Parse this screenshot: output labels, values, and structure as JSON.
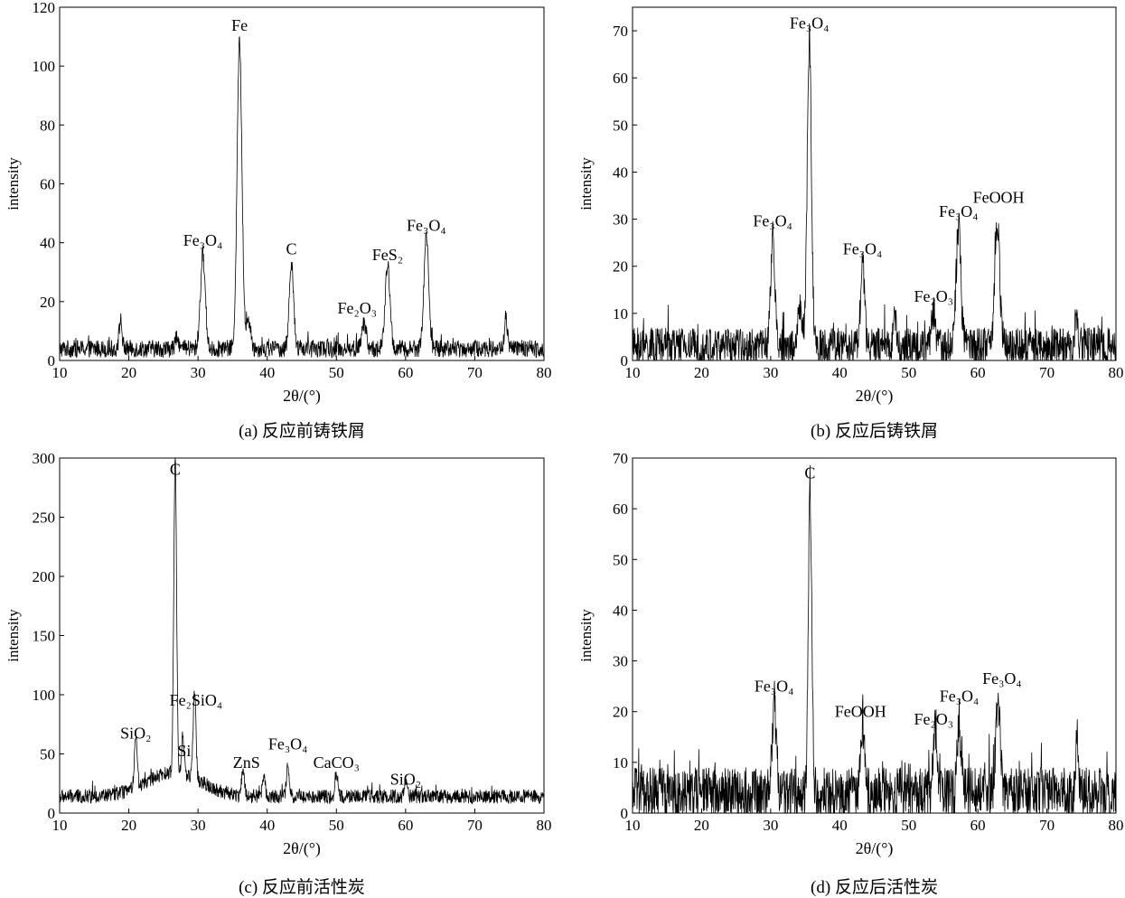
{
  "chart_data": [
    {
      "type": "line",
      "caption": "(a) 反应前铸铁屑",
      "xlabel": "2θ/(°)",
      "ylabel": "intensity",
      "xlim": [
        10,
        80
      ],
      "ylim": [
        0,
        120
      ],
      "xticks": [
        10,
        20,
        30,
        40,
        50,
        60,
        70,
        80
      ],
      "yticks": [
        0,
        20,
        40,
        60,
        80,
        100,
        120
      ],
      "baseline": 4,
      "noise": 3,
      "series_color": "#000000",
      "peaks": [
        {
          "x": 18.8,
          "y": 14,
          "w": 0.2
        },
        {
          "x": 27.0,
          "y": 9,
          "w": 0.2
        },
        {
          "x": 30.7,
          "y": 36,
          "w": 0.35
        },
        {
          "x": 36.0,
          "y": 108,
          "w": 0.35
        },
        {
          "x": 37.3,
          "y": 14,
          "w": 0.3
        },
        {
          "x": 43.5,
          "y": 34,
          "w": 0.3
        },
        {
          "x": 54.0,
          "y": 13,
          "w": 0.3
        },
        {
          "x": 57.4,
          "y": 32,
          "w": 0.35
        },
        {
          "x": 63.0,
          "y": 42,
          "w": 0.35
        },
        {
          "x": 74.5,
          "y": 15,
          "w": 0.2
        }
      ],
      "annotations": [
        {
          "label": "Fe",
          "x": 36.0,
          "y": 112
        },
        {
          "label": "Fe₃O₄",
          "x": 30.7,
          "y": 39
        },
        {
          "label": "C",
          "x": 43.5,
          "y": 36
        },
        {
          "label": "FeS₂",
          "x": 57.4,
          "y": 34
        },
        {
          "label": "Fe₃O₄",
          "x": 63.0,
          "y": 44
        },
        {
          "label": "Fe₂O₃",
          "x": 53.0,
          "y": 16
        }
      ]
    },
    {
      "type": "line",
      "caption": "(b) 反应后铸铁屑",
      "xlabel": "2θ/(°)",
      "ylabel": "intensity",
      "xlim": [
        10,
        80
      ],
      "ylim": [
        0,
        75
      ],
      "xticks": [
        10,
        20,
        30,
        40,
        50,
        60,
        70,
        80
      ],
      "yticks": [
        0,
        10,
        20,
        30,
        40,
        50,
        60,
        70
      ],
      "baseline": 3,
      "noise": 4,
      "series_color": "#000000",
      "peaks": [
        {
          "x": 30.3,
          "y": 26,
          "w": 0.3
        },
        {
          "x": 34.2,
          "y": 11,
          "w": 0.3
        },
        {
          "x": 35.6,
          "y": 68,
          "w": 0.3
        },
        {
          "x": 43.3,
          "y": 20,
          "w": 0.3
        },
        {
          "x": 48.0,
          "y": 9,
          "w": 0.2
        },
        {
          "x": 53.6,
          "y": 10,
          "w": 0.3
        },
        {
          "x": 57.2,
          "y": 28,
          "w": 0.35
        },
        {
          "x": 62.8,
          "y": 30,
          "w": 0.35
        },
        {
          "x": 74.3,
          "y": 10,
          "w": 0.2
        }
      ],
      "annotations": [
        {
          "label": "Fe₃O₄",
          "x": 35.6,
          "y": 70.5
        },
        {
          "label": "Fe₃O₄",
          "x": 30.3,
          "y": 28.5
        },
        {
          "label": "Fe₃O₄",
          "x": 43.3,
          "y": 22.5
        },
        {
          "label": "Fe₂O₃",
          "x": 53.6,
          "y": 12.5
        },
        {
          "label": "Fe₃O₄",
          "x": 57.2,
          "y": 30.5
        },
        {
          "label": "FeOOH",
          "x": 63.0,
          "y": 33.5
        }
      ]
    },
    {
      "type": "line",
      "caption": "(c) 反应前活性炭",
      "xlabel": "2θ/(°)",
      "ylabel": "intensity",
      "xlim": [
        10,
        80
      ],
      "ylim": [
        0,
        300
      ],
      "xticks": [
        10,
        20,
        30,
        40,
        50,
        60,
        70,
        80
      ],
      "yticks": [
        0,
        50,
        100,
        150,
        200,
        250,
        300
      ],
      "baseline": 14,
      "noise": 6,
      "hump": {
        "center": 26.5,
        "height": 20,
        "width": 4
      },
      "series_color": "#000000",
      "peaks": [
        {
          "x": 21.0,
          "y": 60,
          "w": 0.2
        },
        {
          "x": 26.7,
          "y": 283,
          "w": 0.2
        },
        {
          "x": 27.8,
          "y": 45,
          "w": 0.2
        },
        {
          "x": 29.5,
          "y": 88,
          "w": 0.2
        },
        {
          "x": 36.5,
          "y": 35,
          "w": 0.2
        },
        {
          "x": 39.5,
          "y": 33,
          "w": 0.2
        },
        {
          "x": 43.0,
          "y": 40,
          "w": 0.2
        },
        {
          "x": 50.0,
          "y": 35,
          "w": 0.2
        },
        {
          "x": 60.0,
          "y": 28,
          "w": 0.2
        }
      ],
      "annotations": [
        {
          "label": "C",
          "x": 26.7,
          "y": 286
        },
        {
          "label": "SiO₂",
          "x": 21.0,
          "y": 63
        },
        {
          "label": "Fe₂SiO₄",
          "x": 29.7,
          "y": 91
        },
        {
          "label": "Si",
          "x": 28.0,
          "y": 48
        },
        {
          "label": "ZnS",
          "x": 37.0,
          "y": 38
        },
        {
          "label": "Fe₃O₄",
          "x": 43.0,
          "y": 54
        },
        {
          "label": "CaCO₃",
          "x": 50.0,
          "y": 38
        },
        {
          "label": "SiO₂",
          "x": 60.0,
          "y": 24
        }
      ]
    },
    {
      "type": "line",
      "caption": "(d) 反应后活性炭",
      "xlabel": "2θ/(°)",
      "ylabel": "intensity",
      "xlim": [
        10,
        80
      ],
      "ylim": [
        0,
        70
      ],
      "xticks": [
        10,
        20,
        30,
        40,
        50,
        60,
        70,
        80
      ],
      "yticks": [
        0,
        10,
        20,
        30,
        40,
        50,
        60,
        70
      ],
      "baseline": 4,
      "noise": 5,
      "series_color": "#000000",
      "peaks": [
        {
          "x": 30.5,
          "y": 22,
          "w": 0.3
        },
        {
          "x": 35.7,
          "y": 64,
          "w": 0.25
        },
        {
          "x": 43.3,
          "y": 17,
          "w": 0.25
        },
        {
          "x": 53.8,
          "y": 16,
          "w": 0.25
        },
        {
          "x": 57.3,
          "y": 18,
          "w": 0.25
        },
        {
          "x": 62.9,
          "y": 24,
          "w": 0.3
        },
        {
          "x": 74.3,
          "y": 12,
          "w": 0.2
        }
      ],
      "annotations": [
        {
          "label": "C",
          "x": 35.7,
          "y": 66
        },
        {
          "label": "Fe₃O₄",
          "x": 30.5,
          "y": 24
        },
        {
          "label": "FeOOH",
          "x": 43.0,
          "y": 19
        },
        {
          "label": "Fe₂O₃",
          "x": 53.6,
          "y": 17.5
        },
        {
          "label": "Fe₃O₄",
          "x": 57.3,
          "y": 22
        },
        {
          "label": "Fe₃O₄",
          "x": 63.5,
          "y": 25.5
        }
      ]
    }
  ]
}
